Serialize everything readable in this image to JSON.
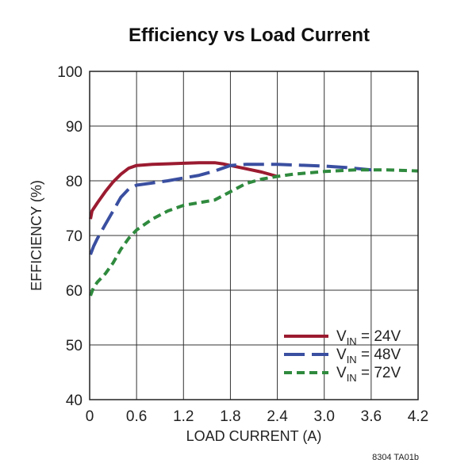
{
  "chart_data": {
    "type": "line",
    "title": "Efficiency vs Load Current",
    "xlabel": "LOAD CURRENT (A)",
    "ylabel": "EFFICIENCY (%)",
    "xlim": [
      0,
      4.2
    ],
    "ylim": [
      40,
      100
    ],
    "xticks": [
      "0",
      "0.6",
      "1.2",
      "1.8",
      "2.4",
      "3.0",
      "3.6",
      "4.2"
    ],
    "yticks": [
      "40",
      "50",
      "60",
      "70",
      "80",
      "90",
      "100"
    ],
    "grid": true,
    "legend_position": "bottom-right",
    "series": [
      {
        "name": "VIN = 24V",
        "legend_main": "V",
        "legend_sub": "IN",
        "legend_rest": " = 24V",
        "color": "#9b1b30",
        "dash": "solid",
        "x": [
          0.01,
          0.03,
          0.1,
          0.2,
          0.3,
          0.4,
          0.5,
          0.6,
          0.8,
          1.0,
          1.2,
          1.4,
          1.6,
          1.7,
          1.8,
          2.0,
          2.2,
          2.4
        ],
        "y": [
          73,
          74.5,
          76,
          78,
          79.8,
          81.2,
          82.3,
          82.8,
          83.0,
          83.1,
          83.2,
          83.3,
          83.3,
          83.1,
          82.8,
          82.2,
          81.6,
          80.8
        ]
      },
      {
        "name": "VIN = 48V",
        "legend_main": "V",
        "legend_sub": "IN",
        "legend_rest": " = 48V",
        "color": "#3a4fa0",
        "dash": "long",
        "x": [
          0.01,
          0.05,
          0.1,
          0.2,
          0.3,
          0.4,
          0.5,
          0.6,
          0.8,
          1.0,
          1.2,
          1.4,
          1.6,
          1.8,
          2.0,
          2.2,
          2.4,
          2.6,
          3.0,
          3.3,
          3.6
        ],
        "y": [
          66.5,
          68,
          69.5,
          72,
          74.5,
          77,
          78.5,
          79.2,
          79.6,
          80.0,
          80.5,
          81.0,
          81.8,
          82.8,
          83.0,
          83.0,
          83.0,
          82.9,
          82.7,
          82.4,
          82.0
        ]
      },
      {
        "name": "VIN = 72V",
        "legend_main": "V",
        "legend_sub": "IN",
        "legend_rest": " = 72V",
        "color": "#2f8a3e",
        "dash": "short",
        "x": [
          0.01,
          0.05,
          0.1,
          0.2,
          0.3,
          0.4,
          0.5,
          0.6,
          0.8,
          1.0,
          1.2,
          1.4,
          1.6,
          1.8,
          2.0,
          2.2,
          2.4,
          2.6,
          3.0,
          3.4,
          3.6,
          3.8,
          4.2
        ],
        "y": [
          59,
          60.5,
          61.5,
          63,
          65,
          67.5,
          69.5,
          71.0,
          73.0,
          74.5,
          75.5,
          76.0,
          76.5,
          78.0,
          79.5,
          80.3,
          80.8,
          81.2,
          81.7,
          82.0,
          82.0,
          82.0,
          81.8
        ]
      }
    ]
  },
  "footnote": "8304 TA01b"
}
